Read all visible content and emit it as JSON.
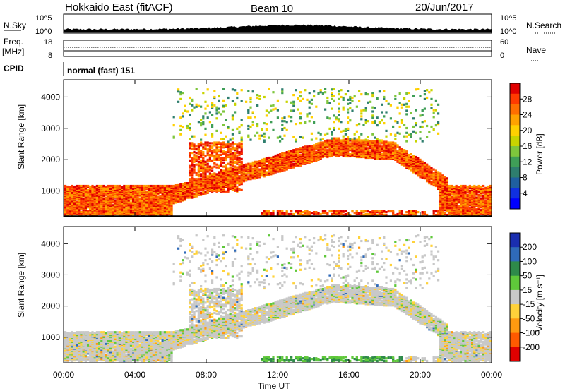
{
  "header": {
    "station": "Hokkaido East (fitACF)",
    "beam": "Beam 10",
    "date": "20/Jun/2017"
  },
  "strip": {
    "nsky_label": "N.Sky",
    "nsky_top": "10^5",
    "nsky_bottom": "10^0",
    "nsearch_top": "10^5",
    "nsearch_bottom": "10^0",
    "nsearch_label": "N.Search",
    "freq_label": "Freq.",
    "freq_unit": "[MHz]",
    "freq_top": "18",
    "freq_bottom": "8",
    "nave_top": "60",
    "nave_bottom": "0",
    "nave_label": "Nave",
    "cpid_label": "CPID",
    "cpid_text": "normal (fast) 151"
  },
  "chart_data": [
    {
      "type": "heatmap",
      "panel": "power",
      "ylabel": "Slant Range [km]",
      "yticks": [
        1000,
        2000,
        3000,
        4000
      ],
      "ylim": [
        180,
        4550
      ],
      "xlim_hours": [
        0,
        24
      ],
      "colorbar_label": "Power [dB]",
      "colorbar_ticks": [
        "28",
        "24",
        "20",
        "16",
        "12",
        "8",
        "4"
      ],
      "colorbar_colors": [
        "#e00000",
        "#ff3a00",
        "#ff6e00",
        "#ffa200",
        "#ffd000",
        "#c8d400",
        "#7ec63c",
        "#3f9e57",
        "#2e7e6e",
        "#1f5fa0",
        "#1030e0",
        "#0000ff"
      ]
    },
    {
      "type": "heatmap",
      "panel": "velocity",
      "ylabel": "Slant Range [km]",
      "yticks": [
        1000,
        2000,
        3000,
        4000
      ],
      "ylim": [
        180,
        4550
      ],
      "xlim_hours": [
        0,
        24
      ],
      "xticks": [
        "00:00",
        "04:00",
        "08:00",
        "12:00",
        "16:00",
        "20:00",
        "00:00"
      ],
      "xlabel": "Time UT",
      "colorbar_label": "Velocity [m s⁻¹]",
      "colorbar_ticks": [
        "200",
        "100",
        "50",
        "15",
        "-15",
        "-50",
        "-100",
        "-200"
      ],
      "colorbar_colors": [
        "#1a2eb0",
        "#2f6ab8",
        "#2e8a4a",
        "#5fc83a",
        "#c8c8c8",
        "#ffd23a",
        "#ff9a10",
        "#ff5a00",
        "#e00000"
      ]
    }
  ]
}
